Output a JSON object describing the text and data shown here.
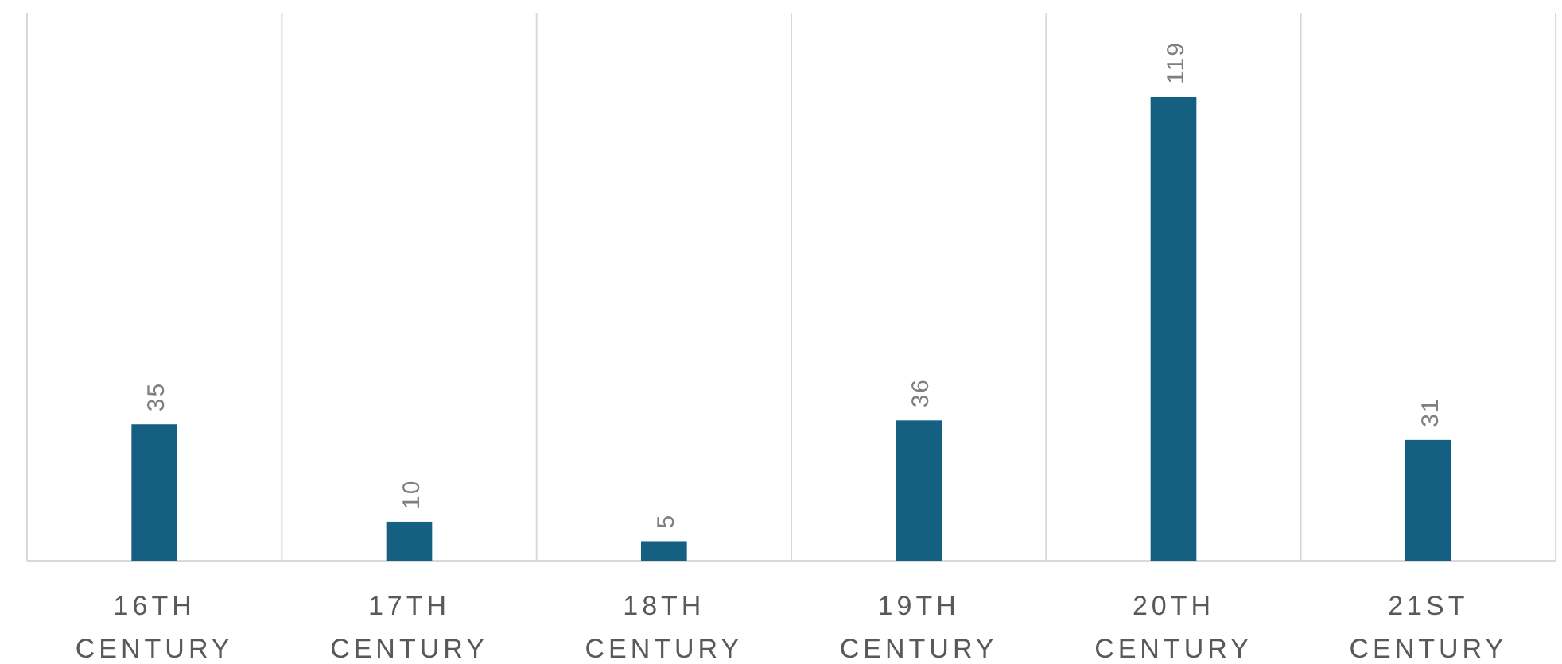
{
  "chart_data": {
    "type": "bar",
    "categories": [
      "16TH CENTURY",
      "17TH CENTURY",
      "18TH CENTURY",
      "19TH CENTURY",
      "20TH CENTURY",
      "21ST CENTURY"
    ],
    "values": [
      35,
      10,
      5,
      36,
      119,
      31
    ],
    "color": "#156082",
    "data_labels": true,
    "grid": "x"
  }
}
